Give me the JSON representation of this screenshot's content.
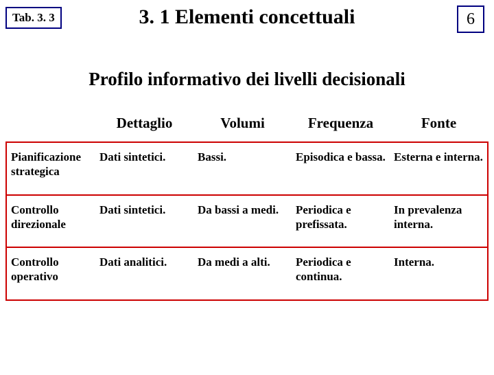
{
  "header": {
    "tab_label": "Tab. 3. 3",
    "title": "3. 1 Elementi concettuali",
    "page_number": "6"
  },
  "subtitle": "Profilo informativo dei livelli decisionali",
  "table": {
    "columns": [
      "Dettaglio",
      "Volumi",
      "Frequenza",
      "Fonte"
    ],
    "rows": [
      {
        "head": "Pianificazione strategica",
        "cells": [
          "Dati sintetici.",
          "Bassi.",
          "Episodica e bassa.",
          "Esterna   e interna."
        ]
      },
      {
        "head": "Controllo direzionale",
        "cells": [
          "Dati sintetici.",
          "Da bassi a medi.",
          "Periodica e prefissata.",
          "In prevalenza interna."
        ]
      },
      {
        "head": "Controllo operativo",
        "cells": [
          "Dati analitici.",
          "Da medi a alti.",
          "Periodica e continua.",
          "Interna."
        ]
      }
    ],
    "border_color": "#cc0000",
    "accent_color": "#000080",
    "text_color": "#000000",
    "background_color": "#ffffff"
  }
}
